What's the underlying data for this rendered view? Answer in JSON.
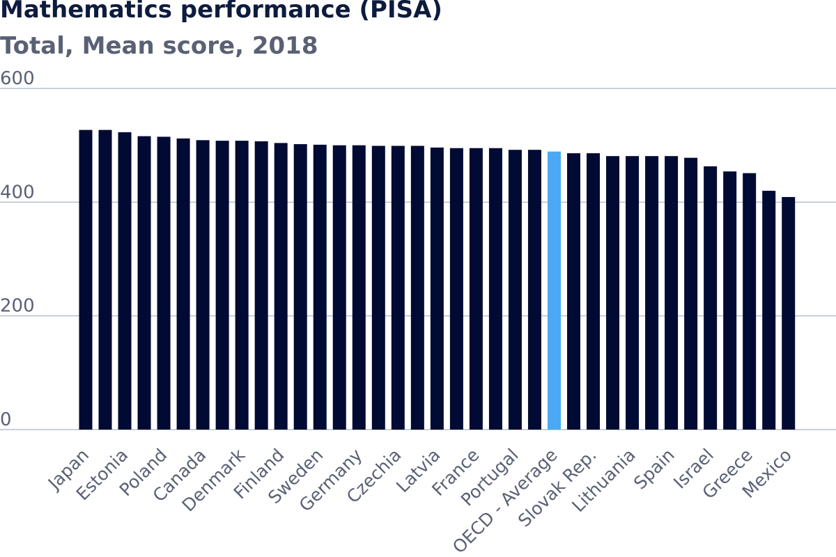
{
  "chart_data": {
    "type": "bar",
    "title": "Mathematics performance (PISA)",
    "subtitle": "Total, Mean score, 2018",
    "categories": [
      "Japan",
      "",
      "Estonia",
      "",
      "Poland",
      "",
      "Canada",
      "",
      "Denmark",
      "",
      "Finland",
      "",
      "Sweden",
      "",
      "Germany",
      "",
      "Czechia",
      "",
      "Latvia",
      "",
      "France",
      "",
      "Portugal",
      "",
      "OECD - Average",
      "",
      "Slovak Rep.",
      "",
      "Lithuania",
      "",
      "Spain",
      "",
      "Israel",
      "",
      "Greece",
      "",
      "Mexico"
    ],
    "values": [
      527,
      527,
      523,
      516,
      515,
      512,
      509,
      508,
      508,
      507,
      504,
      502,
      501,
      500,
      500,
      499,
      499,
      499,
      496,
      495,
      495,
      495,
      492,
      492,
      489,
      486,
      486,
      481,
      481,
      481,
      481,
      478,
      463,
      454,
      451,
      420,
      409
    ],
    "highlight_category": "OECD - Average",
    "colors": {
      "bar": "#000a33",
      "highlight": "#4aa8f5",
      "grid": "#b6c0cc"
    },
    "y_ticks": [
      0,
      200,
      400,
      600
    ],
    "ylim": [
      0,
      600
    ],
    "grid": true,
    "legend": "none"
  }
}
